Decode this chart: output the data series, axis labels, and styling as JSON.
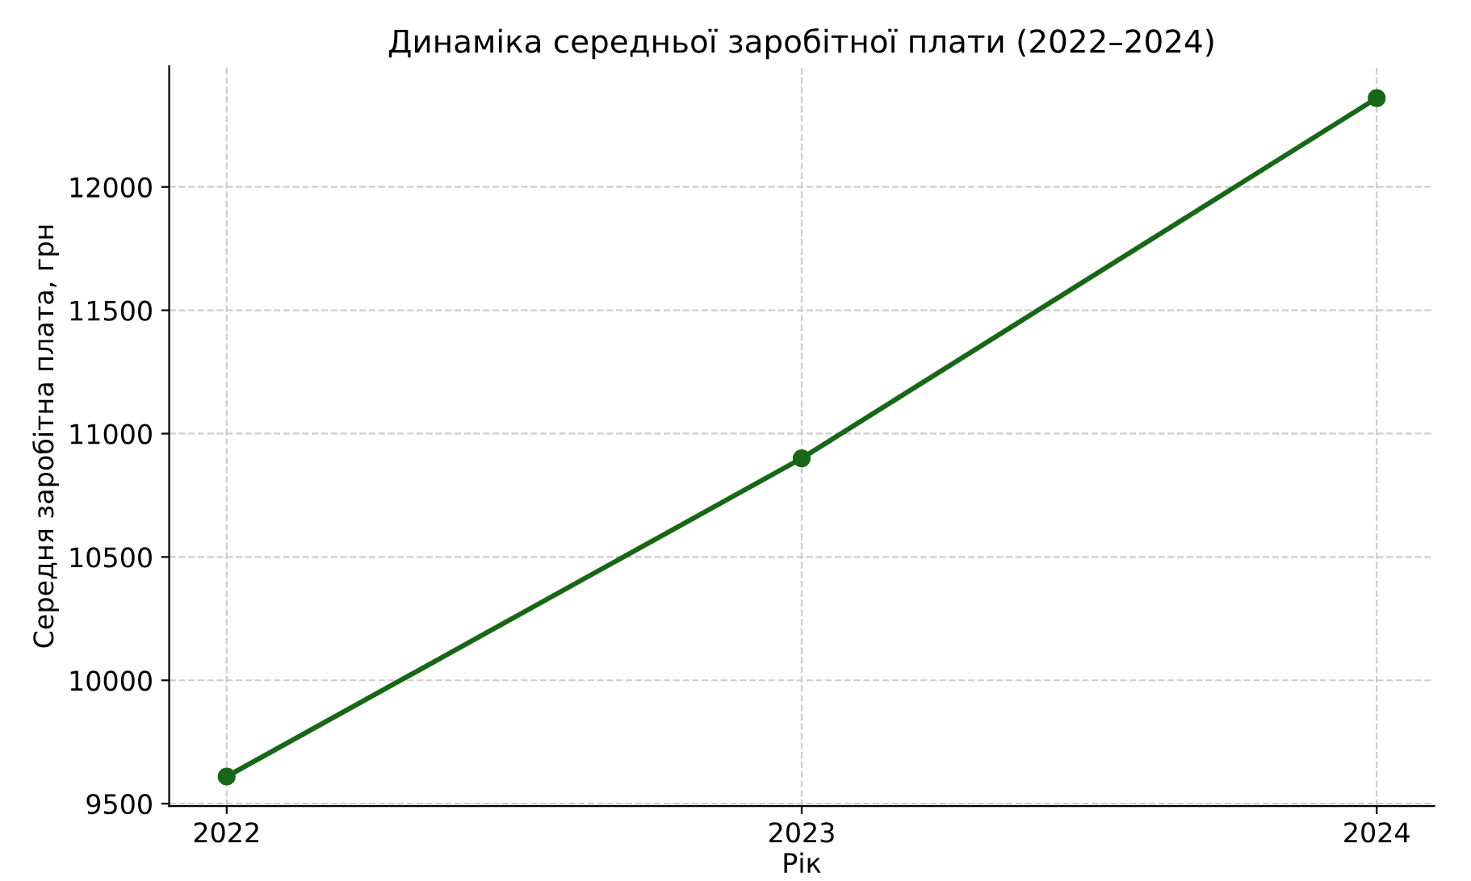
{
  "chart_data": {
    "type": "line",
    "title": "Динаміка середньої заробітної плати (2022–2024)",
    "xlabel": "Рік",
    "ylabel": "Середня заробітна плата, грн",
    "x": [
      2022,
      2023,
      2024
    ],
    "series": [
      {
        "color": "#176717",
        "values": [
          9610,
          10900,
          12360
        ]
      }
    ],
    "xlim": [
      2021.9,
      2024.1
    ],
    "xticks": [
      2022,
      2023,
      2024
    ],
    "ylim": [
      9490,
      12490
    ],
    "yticks": [
      9500,
      10000,
      10500,
      11000,
      11500,
      12000
    ],
    "grid": true,
    "marker": "circle",
    "line_style": "solid"
  }
}
